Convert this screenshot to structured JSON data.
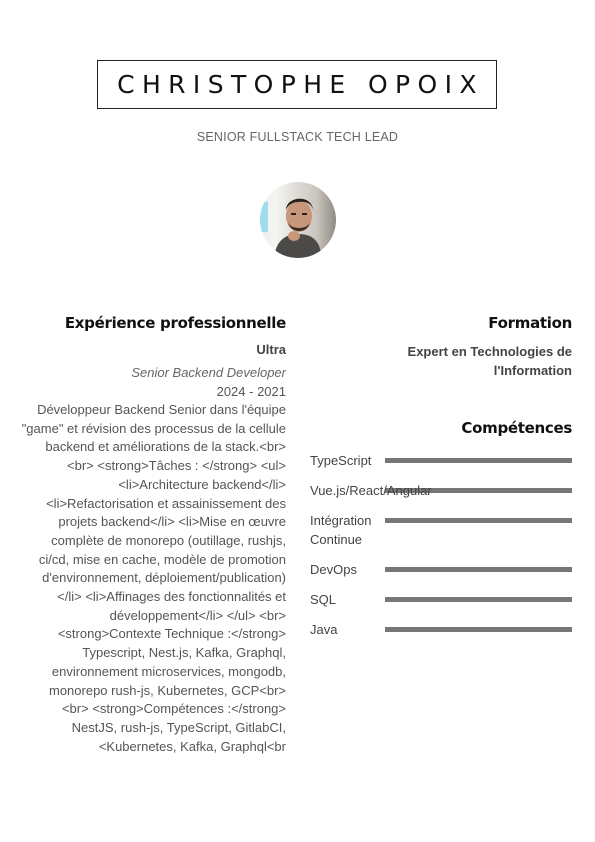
{
  "header": {
    "name": "CHRISTOPHE OPOIX",
    "title": "SENIOR FULLSTACK TECH LEAD",
    "avatar_icon": "portrait-photo"
  },
  "experience": {
    "heading": "Expérience professionnelle",
    "items": [
      {
        "company": "Ultra",
        "role": "Senior Backend Developer",
        "dates": "2024 - 2021",
        "description": "Développeur Backend Senior dans l'équipe \"game\" et révision des processus de la cellule backend et améliorations de la stack.<br> <br> <strong>Tâches : </strong> <ul> <li>Architecture backend</li> <li>Refactorisation et assainissement des projets backend</li> <li>Mise en œuvre complète de monorepo (outillage, rushjs, ci/cd, mise en cache, modèle de promotion d'environnement, déploiement/publication)</li> <li>Affinages des fonctionnalités et développement</li> </ul> <br> <strong>Contexte Technique :</strong> Typescript, Nest.js, Kafka, Graphql, environnement microservices, mongodb, monorepo rush-js, Kubernetes, GCP<br> <br> <strong>Compétences :</strong> NestJS, rush-js, TypeScript, GitlabCI, <Kubernetes, Kafka, Graphql<br"
      }
    ]
  },
  "education": {
    "heading": "Formation",
    "items": [
      {
        "title": "Expert en Technologies de l'Information"
      }
    ]
  },
  "skills": {
    "heading": "Compétences",
    "items": [
      {
        "label": "TypeScript",
        "level": 1.0
      },
      {
        "label": "Vue.js/React/Angular",
        "level": 1.0
      },
      {
        "label": "Intégration Continue",
        "level": 1.0
      },
      {
        "label": "DevOps",
        "level": 1.0
      },
      {
        "label": "SQL",
        "level": 1.0
      },
      {
        "label": "Java",
        "level": 1.0
      }
    ],
    "bar_color": "#777777"
  }
}
